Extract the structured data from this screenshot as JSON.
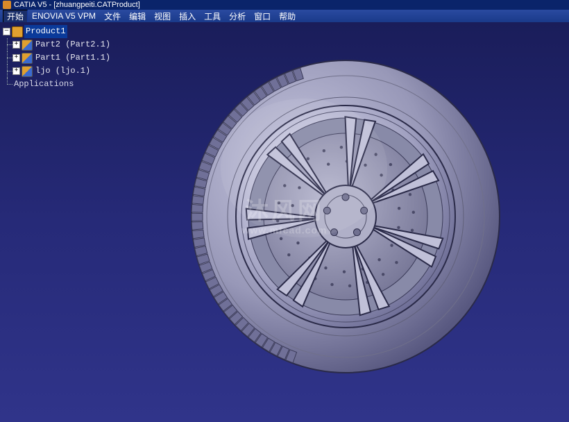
{
  "title": "CATIA V5 - [zhuangpeiti.CATProduct]",
  "menu": {
    "start": "开始",
    "enovia": "ENOVIA V5 VPM",
    "file": "文件",
    "edit": "编辑",
    "view": "视图",
    "insert": "插入",
    "tools": "工具",
    "analyze": "分析",
    "window": "窗口",
    "help": "帮助"
  },
  "tree": {
    "root": "Product1",
    "items": [
      {
        "label": "Part2 (Part2.1)"
      },
      {
        "label": "Part1 (Part1.1)"
      },
      {
        "label": "ljo (ljo.1)"
      }
    ],
    "apps": "Applications"
  },
  "watermark": {
    "line1": "沐风网",
    "line2": "www.mfcad.com"
  },
  "viewport": {
    "bg_top": "#1a1d5a",
    "bg_bottom": "#30348a",
    "model_fill": "#a8a8c8",
    "model_stroke": "#2a2a48",
    "model_hi": "#e8e8f8",
    "model_shadow": "#606088"
  }
}
